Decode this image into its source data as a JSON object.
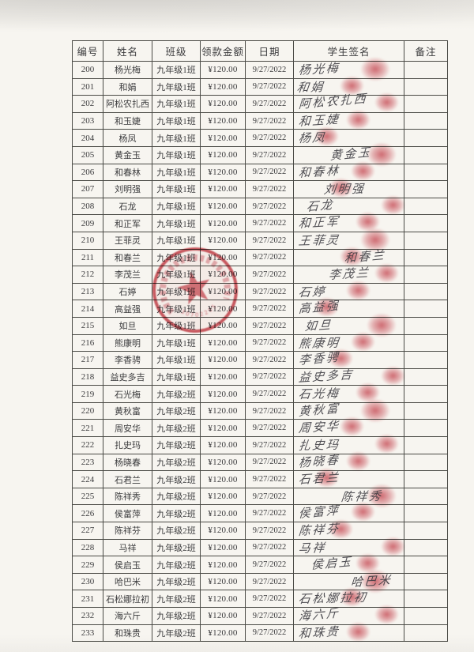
{
  "document": {
    "kind": "scanned payment sign-off sheet",
    "table": {
      "columns": [
        "编号",
        "姓名",
        "班级",
        "领款金额",
        "日期",
        "学生签名",
        "备注"
      ]
    },
    "rows": [
      {
        "id": "200",
        "name": "杨光梅",
        "class": "九年级1班",
        "amount": "¥120.00",
        "date": "9/27/2022",
        "signature": "杨光梅",
        "remark": ""
      },
      {
        "id": "201",
        "name": "和娟",
        "class": "九年级1班",
        "amount": "¥120.00",
        "date": "9/27/2022",
        "signature": "和娟",
        "remark": ""
      },
      {
        "id": "202",
        "name": "阿松农扎西",
        "class": "九年级1班",
        "amount": "¥120.00",
        "date": "9/27/2022",
        "signature": "阿松农扎西",
        "remark": ""
      },
      {
        "id": "203",
        "name": "和玉婕",
        "class": "九年级1班",
        "amount": "¥120.00",
        "date": "9/27/2022",
        "signature": "和玉婕",
        "remark": ""
      },
      {
        "id": "204",
        "name": "杨凤",
        "class": "九年级1班",
        "amount": "¥120.00",
        "date": "9/27/2022",
        "signature": "杨凤",
        "remark": ""
      },
      {
        "id": "205",
        "name": "黄金玉",
        "class": "九年级1班",
        "amount": "¥120.00",
        "date": "9/27/2022",
        "signature": "黄金玉",
        "remark": ""
      },
      {
        "id": "206",
        "name": "和春林",
        "class": "九年级1班",
        "amount": "¥120.00",
        "date": "9/27/2022",
        "signature": "和春林",
        "remark": ""
      },
      {
        "id": "207",
        "name": "刘明强",
        "class": "九年级1班",
        "amount": "¥120.00",
        "date": "9/27/2022",
        "signature": "刘明强",
        "remark": ""
      },
      {
        "id": "208",
        "name": "石龙",
        "class": "九年级1班",
        "amount": "¥120.00",
        "date": "9/27/2022",
        "signature": "石龙",
        "remark": ""
      },
      {
        "id": "209",
        "name": "和正军",
        "class": "九年级1班",
        "amount": "¥120.00",
        "date": "9/27/2022",
        "signature": "和正军",
        "remark": ""
      },
      {
        "id": "210",
        "name": "王菲灵",
        "class": "九年级1班",
        "amount": "¥120.00",
        "date": "9/27/2022",
        "signature": "王菲灵",
        "remark": ""
      },
      {
        "id": "211",
        "name": "和春兰",
        "class": "九年级1班",
        "amount": "¥120.00",
        "date": "9/27/2022",
        "signature": "和春兰",
        "remark": ""
      },
      {
        "id": "212",
        "name": "李茂兰",
        "class": "九年级1班",
        "amount": "¥120.00",
        "date": "9/27/2022",
        "signature": "李茂兰",
        "remark": ""
      },
      {
        "id": "213",
        "name": "石婷",
        "class": "九年级1班",
        "amount": "¥120.00",
        "date": "9/27/2022",
        "signature": "石婷",
        "remark": ""
      },
      {
        "id": "214",
        "name": "高益强",
        "class": "九年级1班",
        "amount": "¥120.00",
        "date": "9/27/2022",
        "signature": "高益强",
        "remark": ""
      },
      {
        "id": "215",
        "name": "如旦",
        "class": "九年级1班",
        "amount": "¥120.00",
        "date": "9/27/2022",
        "signature": "如旦",
        "remark": ""
      },
      {
        "id": "216",
        "name": "熊康明",
        "class": "九年级1班",
        "amount": "¥120.00",
        "date": "9/27/2022",
        "signature": "熊康明",
        "remark": ""
      },
      {
        "id": "217",
        "name": "李香骋",
        "class": "九年级1班",
        "amount": "¥120.00",
        "date": "9/27/2022",
        "signature": "李香骋",
        "remark": ""
      },
      {
        "id": "218",
        "name": "益史多吉",
        "class": "九年级1班",
        "amount": "¥120.00",
        "date": "9/27/2022",
        "signature": "益史多吉",
        "remark": ""
      },
      {
        "id": "219",
        "name": "石光梅",
        "class": "九年级2班",
        "amount": "¥120.00",
        "date": "9/27/2022",
        "signature": "石光梅",
        "remark": ""
      },
      {
        "id": "220",
        "name": "黄秋富",
        "class": "九年级2班",
        "amount": "¥120.00",
        "date": "9/27/2022",
        "signature": "黄秋富",
        "remark": ""
      },
      {
        "id": "221",
        "name": "周安华",
        "class": "九年级2班",
        "amount": "¥120.00",
        "date": "9/27/2022",
        "signature": "周安华",
        "remark": ""
      },
      {
        "id": "222",
        "name": "扎史玛",
        "class": "九年级2班",
        "amount": "¥120.00",
        "date": "9/27/2022",
        "signature": "扎史玛",
        "remark": ""
      },
      {
        "id": "223",
        "name": "杨晓春",
        "class": "九年级2班",
        "amount": "¥120.00",
        "date": "9/27/2022",
        "signature": "杨晓春",
        "remark": ""
      },
      {
        "id": "224",
        "name": "石君兰",
        "class": "九年级2班",
        "amount": "¥120.00",
        "date": "9/27/2022",
        "signature": "石君兰",
        "remark": ""
      },
      {
        "id": "225",
        "name": "陈祥秀",
        "class": "九年级2班",
        "amount": "¥120.00",
        "date": "9/27/2022",
        "signature": "陈祥秀",
        "remark": ""
      },
      {
        "id": "226",
        "name": "侯富萍",
        "class": "九年级2班",
        "amount": "¥120.00",
        "date": "9/27/2022",
        "signature": "侯富萍",
        "remark": ""
      },
      {
        "id": "227",
        "name": "陈祥芬",
        "class": "九年级2班",
        "amount": "¥120.00",
        "date": "9/27/2022",
        "signature": "陈祥芬",
        "remark": ""
      },
      {
        "id": "228",
        "name": "马祥",
        "class": "九年级2班",
        "amount": "¥120.00",
        "date": "9/27/2022",
        "signature": "马祥",
        "remark": ""
      },
      {
        "id": "229",
        "name": "侯启玉",
        "class": "九年级2班",
        "amount": "¥120.00",
        "date": "9/27/2022",
        "signature": "侯启玉",
        "remark": ""
      },
      {
        "id": "230",
        "name": "哈巴米",
        "class": "九年级2班",
        "amount": "¥120.00",
        "date": "9/27/2022",
        "signature": "哈巴米",
        "remark": ""
      },
      {
        "id": "231",
        "name": "石松娜拉初",
        "class": "九年级2班",
        "amount": "¥120.00",
        "date": "9/27/2022",
        "signature": "石松娜拉初",
        "remark": ""
      },
      {
        "id": "232",
        "name": "海六斤",
        "class": "九年级2班",
        "amount": "¥120.00",
        "date": "9/27/2022",
        "signature": "海六斤",
        "remark": ""
      },
      {
        "id": "233",
        "name": "和珠贵",
        "class": "九年级2班",
        "amount": "¥120.00",
        "date": "9/27/2022",
        "signature": "和珠贵",
        "remark": ""
      }
    ],
    "seal": {
      "shape": "round official red seal with five-pointed star",
      "digits": "30702205"
    },
    "colors": {
      "stamp_red": "#c43a44",
      "ink": "#3a3a3c",
      "paper": "#f7f5f0"
    }
  }
}
